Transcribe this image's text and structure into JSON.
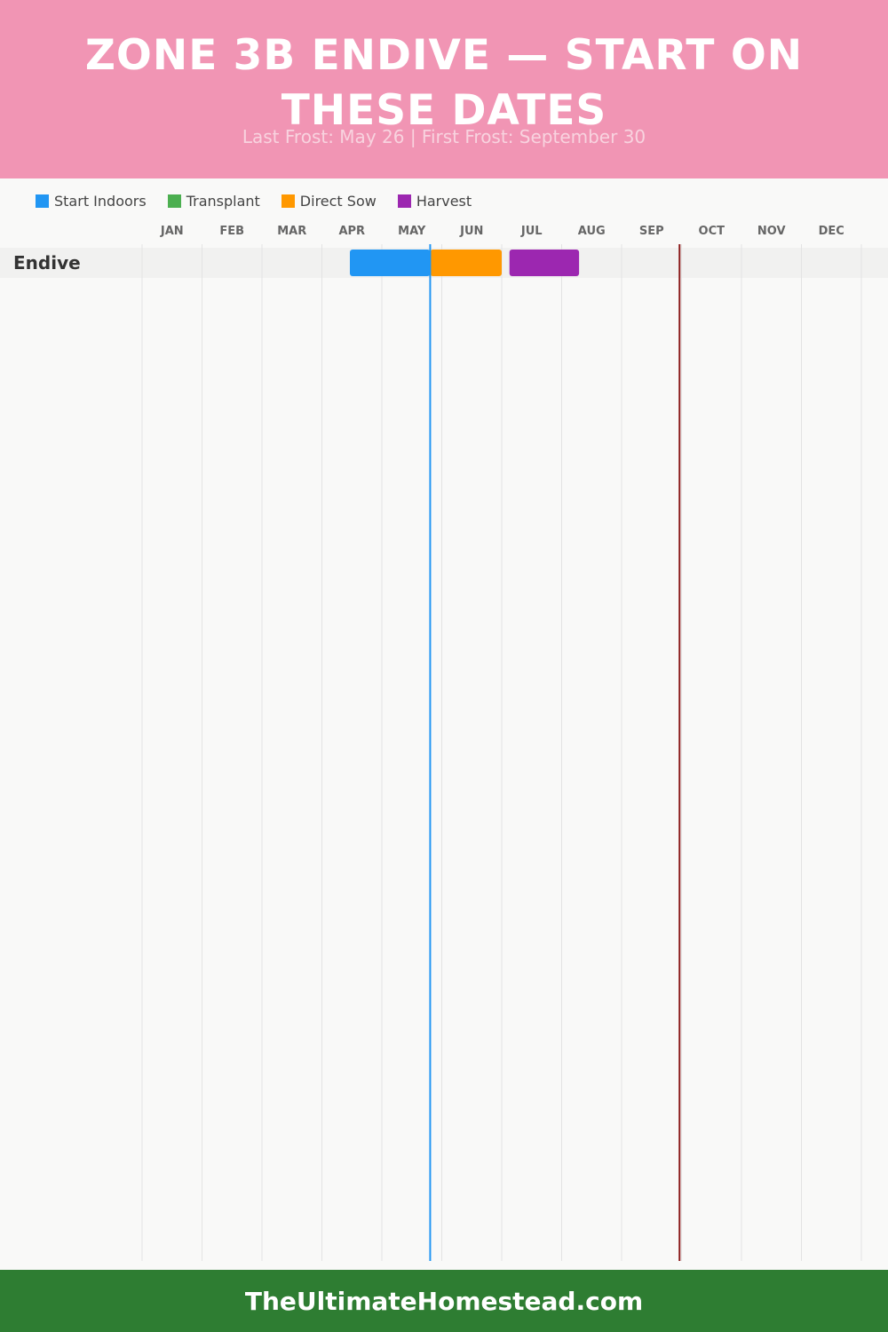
{
  "header": {
    "title": "ZONE 3B ENDIVE — START ON THESE DATES",
    "subtitle": "Last Frost: May 26 | First Frost: September 30",
    "background": "#f195b4"
  },
  "legend": [
    {
      "label": "Start Indoors",
      "color": "#2196f3"
    },
    {
      "label": "Transplant",
      "color": "#4caf50"
    },
    {
      "label": "Direct Sow",
      "color": "#ff9800"
    },
    {
      "label": "Harvest",
      "color": "#9c27b0"
    }
  ],
  "chart_data": {
    "type": "gantt",
    "months": [
      "JAN",
      "FEB",
      "MAR",
      "APR",
      "MAY",
      "JUN",
      "JUL",
      "AUG",
      "SEP",
      "OCT",
      "NOV",
      "DEC"
    ],
    "rows": [
      {
        "label": "Endive",
        "bars": [
          {
            "phase": "Start Indoors",
            "start": "Apr 15",
            "end": "May 26",
            "color": "#2196f3"
          },
          {
            "phase": "Direct Sow",
            "start": "May 26",
            "end": "Jul 1",
            "color": "#ff9800"
          },
          {
            "phase": "Harvest",
            "start": "Jul 5",
            "end": "Aug 10",
            "color": "#9c27b0"
          }
        ]
      }
    ],
    "markers": [
      {
        "name": "Last Frost",
        "date": "May 26",
        "color": "#2196f3"
      },
      {
        "name": "First Frost",
        "date": "Sep 30",
        "color": "#8b1a1a"
      }
    ]
  },
  "footer": {
    "text": "TheUltimateHomestead.com",
    "background": "#2e7d32"
  }
}
